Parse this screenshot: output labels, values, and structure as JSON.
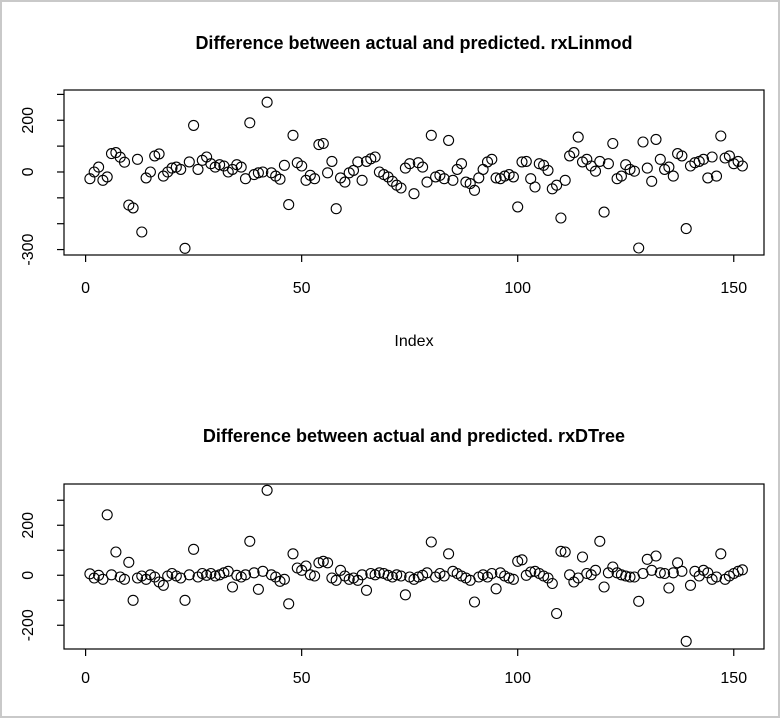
{
  "device": {
    "background": "#ffffff",
    "border_color": "#c9c9c9",
    "foreground": "#000000"
  },
  "chart_data": [
    {
      "type": "scatter",
      "title": "Difference between actual and predicted. rxLinmod",
      "xlabel": "Index",
      "ylabel": "",
      "marker": "open-circle",
      "marker_color": "#000000",
      "grid": false,
      "x_is_index": true,
      "n_points": 152,
      "x_ticks": [
        0,
        50,
        100,
        150
      ],
      "y_ticks": [
        300,
        200,
        100,
        0,
        -100,
        -200,
        -300
      ],
      "y_tick_labels": [
        "",
        "200",
        "",
        "0",
        "",
        "",
        "-300"
      ],
      "xlim": [
        -5,
        157
      ],
      "ylim": [
        -321,
        317
      ],
      "values": [
        -26,
        0,
        19,
        -32,
        -19,
        71,
        75,
        57,
        38,
        -128,
        -139,
        49,
        -232,
        -23,
        0,
        62,
        70,
        -16,
        0,
        15,
        19,
        10,
        -295,
        39,
        180,
        10,
        45,
        58,
        32,
        19,
        28,
        23,
        0,
        10,
        28,
        19,
        -26,
        190,
        -10,
        -3,
        0,
        270,
        -3,
        -16,
        -28,
        26,
        -126,
        142,
        36,
        23,
        -32,
        -13,
        -26,
        106,
        110,
        -3,
        41,
        -142,
        -23,
        -39,
        -3,
        6,
        39,
        -32,
        41,
        51,
        58,
        0,
        -10,
        -19,
        -36,
        -51,
        -62,
        15,
        32,
        -84,
        36,
        19,
        -39,
        142,
        -19,
        -13,
        -26,
        122,
        -32,
        10,
        32,
        -39,
        -45,
        -71,
        -23,
        10,
        39,
        49,
        -23,
        -26,
        -16,
        -10,
        -19,
        -135,
        39,
        41,
        -26,
        -58,
        32,
        26,
        6,
        -65,
        -51,
        -178,
        -32,
        62,
        75,
        135,
        39,
        49,
        23,
        3,
        41,
        -155,
        32,
        110,
        -26,
        -16,
        28,
        10,
        3,
        -294,
        116,
        15,
        -36,
        126,
        49,
        10,
        19,
        -16,
        71,
        62,
        -219,
        23,
        36,
        41,
        49,
        -23,
        58,
        -16,
        139,
        54,
        62,
        32,
        41,
        23
      ]
    },
    {
      "type": "scatter",
      "title": "Difference between actual and predicted. rxDTree",
      "xlabel": "",
      "ylabel": "",
      "marker": "open-circle",
      "marker_color": "#000000",
      "grid": false,
      "x_is_index": true,
      "n_points": 152,
      "x_ticks": [
        0,
        50,
        100,
        150
      ],
      "y_ticks": [
        300,
        200,
        100,
        0,
        -100,
        -200
      ],
      "y_tick_labels": [
        "",
        "200",
        "",
        "0",
        "",
        "-200"
      ],
      "xlim": [
        -5,
        157
      ],
      "ylim": [
        -295,
        365
      ],
      "values": [
        6,
        -11,
        0,
        -16,
        242,
        2,
        93,
        -7,
        -16,
        52,
        -100,
        -11,
        -3,
        -16,
        2,
        -7,
        -27,
        -40,
        -3,
        7,
        -3,
        -11,
        -100,
        2,
        104,
        -7,
        7,
        0,
        7,
        -3,
        2,
        10,
        16,
        -47,
        0,
        -7,
        2,
        136,
        10,
        -56,
        16,
        340,
        2,
        -7,
        -24,
        -16,
        -114,
        86,
        29,
        20,
        37,
        2,
        -3,
        50,
        56,
        50,
        -11,
        -20,
        20,
        -3,
        -16,
        -11,
        -20,
        2,
        -60,
        7,
        2,
        10,
        7,
        0,
        -7,
        2,
        -3,
        -78,
        -7,
        -16,
        -7,
        0,
        10,
        133,
        -7,
        7,
        -3,
        86,
        16,
        7,
        -3,
        -11,
        -20,
        -107,
        -7,
        2,
        -7,
        7,
        -54,
        10,
        -3,
        -11,
        -16,
        56,
        62,
        0,
        13,
        16,
        7,
        -3,
        -11,
        -33,
        -153,
        96,
        93,
        2,
        -27,
        -11,
        73,
        7,
        2,
        20,
        136,
        -47,
        10,
        33,
        10,
        2,
        -3,
        -7,
        -7,
        -104,
        7,
        64,
        20,
        77,
        10,
        7,
        -51,
        10,
        50,
        16,
        -264,
        -40,
        16,
        -3,
        20,
        10,
        -16,
        -7,
        86,
        -16,
        -3,
        7,
        16,
        22
      ]
    }
  ]
}
